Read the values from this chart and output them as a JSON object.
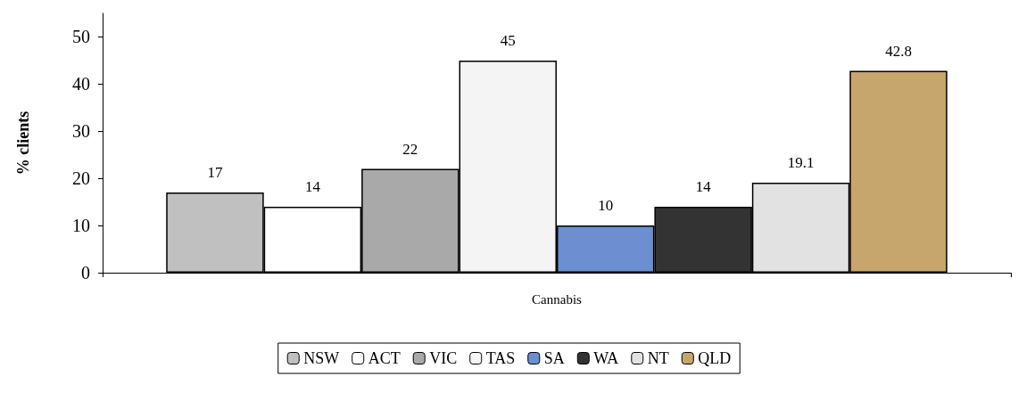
{
  "chart_data": {
    "type": "bar",
    "ylabel": "% clients",
    "categories": [
      "Cannabis"
    ],
    "series": [
      {
        "name": "NSW",
        "color": "#c0c0c0",
        "values": [
          17
        ]
      },
      {
        "name": "ACT",
        "color": "#ffffff",
        "values": [
          14
        ]
      },
      {
        "name": "VIC",
        "color": "#a9a9a9",
        "values": [
          22
        ]
      },
      {
        "name": "TAS",
        "color": "#f4f4f4",
        "values": [
          45
        ]
      },
      {
        "name": "SA",
        "color": "#6b8fd0",
        "values": [
          10
        ]
      },
      {
        "name": "WA",
        "color": "#333333",
        "values": [
          14
        ]
      },
      {
        "name": "NT",
        "color": "#e2e2e2",
        "values": [
          19.1
        ]
      },
      {
        "name": "QLD",
        "color": "#c6a66c",
        "values": [
          42.8
        ]
      }
    ],
    "data_labels": true,
    "ylim": [
      0,
      55
    ],
    "yticks": [
      0,
      10,
      20,
      30,
      40,
      50
    ],
    "grid": false,
    "legend": "bottom"
  }
}
